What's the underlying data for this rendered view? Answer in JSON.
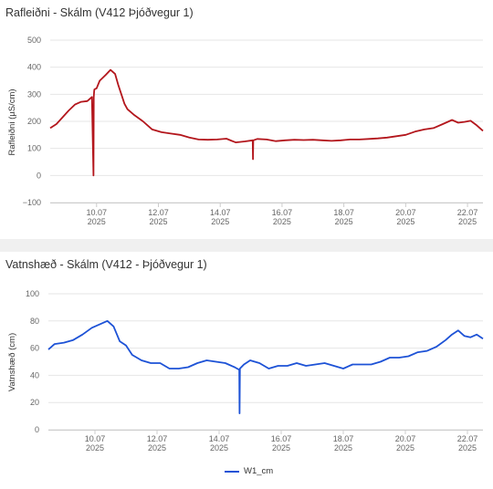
{
  "chart_data": [
    {
      "type": "line",
      "title": "Rafleiðni - Skálm (V412 Þjóðvegur 1)",
      "ylabel": "Rafleiðni (µS/cm)",
      "xlabel": "",
      "ylim": [
        -100,
        500
      ],
      "yticks": [
        "−100",
        "0",
        "100",
        "200",
        "300",
        "400",
        "500"
      ],
      "xlim": [
        0.0,
        14.0
      ],
      "xticks": [
        {
          "x": 1.5,
          "day": "10.07",
          "year": "2025"
        },
        {
          "x": 3.5,
          "day": "12.07",
          "year": "2025"
        },
        {
          "x": 5.5,
          "day": "14.07",
          "year": "2025"
        },
        {
          "x": 7.5,
          "day": "16.07",
          "year": "2025"
        },
        {
          "x": 9.5,
          "day": "18.07",
          "year": "2025"
        },
        {
          "x": 11.5,
          "day": "20.07",
          "year": "2025"
        },
        {
          "x": 13.5,
          "day": "22.07",
          "year": "2025"
        }
      ],
      "series": [
        {
          "color": "#b3161c",
          "x": [
            0.0,
            0.2,
            0.4,
            0.6,
            0.8,
            1.0,
            1.2,
            1.35,
            1.4,
            1.41,
            1.42,
            1.43,
            1.5,
            1.6,
            1.8,
            1.95,
            2.1,
            2.2,
            2.3,
            2.4,
            2.5,
            2.7,
            3.0,
            3.3,
            3.6,
            3.9,
            4.2,
            4.5,
            4.8,
            5.1,
            5.4,
            5.7,
            6.0,
            6.3,
            6.55,
            6.56,
            6.57,
            6.7,
            7.0,
            7.3,
            7.6,
            7.9,
            8.2,
            8.5,
            8.8,
            9.1,
            9.4,
            9.7,
            10.0,
            10.3,
            10.6,
            10.9,
            11.2,
            11.5,
            11.8,
            12.1,
            12.4,
            12.7,
            13.0,
            13.2,
            13.4,
            13.6,
            13.8,
            14.0
          ],
          "y": [
            175,
            190,
            215,
            240,
            262,
            272,
            275,
            290,
            0,
            290,
            310,
            318,
            322,
            350,
            372,
            390,
            375,
            335,
            300,
            265,
            245,
            225,
            200,
            170,
            160,
            155,
            150,
            140,
            133,
            132,
            133,
            136,
            122,
            126,
            130,
            60,
            130,
            135,
            133,
            127,
            130,
            132,
            131,
            132,
            130,
            128,
            130,
            133,
            133,
            135,
            137,
            140,
            145,
            150,
            162,
            170,
            175,
            190,
            205,
            195,
            198,
            202,
            185,
            165
          ]
        }
      ]
    },
    {
      "type": "line",
      "title": "Vatnshæð - Skálm (V412 - Þjóðvegur 1)",
      "ylabel": "Vatnshæð (cm)",
      "xlabel": "",
      "ylim": [
        0,
        100
      ],
      "yticks": [
        "0",
        "20",
        "40",
        "60",
        "80",
        "100"
      ],
      "xlim": [
        0.0,
        14.0
      ],
      "xticks": [
        {
          "x": 1.5,
          "day": "10.07",
          "year": "2025"
        },
        {
          "x": 3.5,
          "day": "12.07",
          "year": "2025"
        },
        {
          "x": 5.5,
          "day": "14.07",
          "year": "2025"
        },
        {
          "x": 7.5,
          "day": "16.07",
          "year": "2025"
        },
        {
          "x": 9.5,
          "day": "18.07",
          "year": "2025"
        },
        {
          "x": 11.5,
          "day": "20.07",
          "year": "2025"
        },
        {
          "x": 13.5,
          "day": "22.07",
          "year": "2025"
        }
      ],
      "series": [
        {
          "name": "W1_cm",
          "color": "#1d52d6",
          "x": [
            0.0,
            0.2,
            0.5,
            0.8,
            1.1,
            1.4,
            1.6,
            1.8,
            1.9,
            2.1,
            2.3,
            2.5,
            2.7,
            3.0,
            3.3,
            3.6,
            3.9,
            4.2,
            4.5,
            4.8,
            5.1,
            5.4,
            5.7,
            6.0,
            6.15,
            6.16,
            6.17,
            6.3,
            6.5,
            6.8,
            7.1,
            7.4,
            7.7,
            8.0,
            8.3,
            8.6,
            8.9,
            9.2,
            9.5,
            9.8,
            10.1,
            10.4,
            10.7,
            11.0,
            11.3,
            11.6,
            11.9,
            12.2,
            12.5,
            12.8,
            13.0,
            13.2,
            13.4,
            13.6,
            13.8,
            14.0
          ],
          "y": [
            59,
            63,
            64,
            66,
            70,
            75,
            77,
            79,
            80,
            76,
            65,
            62,
            55,
            51,
            49,
            49,
            45,
            45,
            46,
            49,
            51,
            50,
            49,
            46,
            44,
            12,
            45,
            48,
            51,
            49,
            45,
            47,
            47,
            49,
            47,
            48,
            49,
            47,
            45,
            48,
            48,
            48,
            50,
            53,
            53,
            54,
            57,
            58,
            61,
            66,
            70,
            73,
            69,
            68,
            70,
            67
          ]
        }
      ]
    }
  ]
}
